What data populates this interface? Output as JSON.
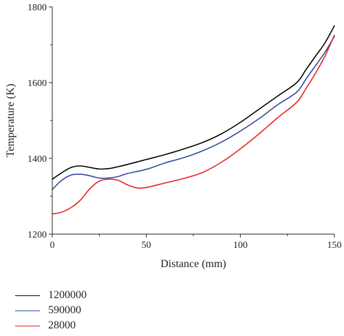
{
  "chart_data": {
    "type": "line",
    "xlabel": "Distance (mm)",
    "ylabel": "Temperature (K)",
    "xlim": [
      0,
      150
    ],
    "ylim": [
      1200,
      1800
    ],
    "xticks": [
      0,
      50,
      100,
      150
    ],
    "yticks": [
      1200,
      1400,
      1600,
      1800
    ],
    "grid": false,
    "legend_position": "bottom-left",
    "series": [
      {
        "name": "1200000",
        "color": "#000000",
        "x": [
          0,
          5,
          10,
          15,
          20,
          25,
          30,
          35,
          40,
          50,
          60,
          70,
          80,
          90,
          100,
          110,
          120,
          130,
          135,
          140,
          145,
          150
        ],
        "y": [
          1345,
          1362,
          1376,
          1380,
          1376,
          1372,
          1373,
          1378,
          1384,
          1397,
          1410,
          1425,
          1442,
          1465,
          1495,
          1530,
          1565,
          1600,
          1635,
          1670,
          1705,
          1750
        ]
      },
      {
        "name": "590000",
        "color": "#2e4a9e",
        "x": [
          0,
          5,
          10,
          15,
          20,
          25,
          30,
          35,
          40,
          50,
          60,
          70,
          80,
          90,
          100,
          110,
          120,
          130,
          135,
          140,
          145,
          150
        ],
        "y": [
          1318,
          1342,
          1356,
          1358,
          1354,
          1348,
          1348,
          1352,
          1360,
          1371,
          1388,
          1402,
          1420,
          1443,
          1472,
          1505,
          1542,
          1575,
          1610,
          1645,
          1680,
          1722
        ]
      },
      {
        "name": "28000",
        "color": "#e8201f",
        "x": [
          0,
          5,
          10,
          15,
          20,
          25,
          30,
          35,
          40,
          45,
          50,
          60,
          70,
          80,
          90,
          100,
          110,
          120,
          130,
          135,
          140,
          145,
          150
        ],
        "y": [
          1253,
          1258,
          1270,
          1290,
          1320,
          1340,
          1345,
          1342,
          1330,
          1322,
          1323,
          1335,
          1347,
          1363,
          1390,
          1425,
          1465,
          1508,
          1548,
          1585,
          1625,
          1670,
          1725
        ]
      }
    ]
  }
}
